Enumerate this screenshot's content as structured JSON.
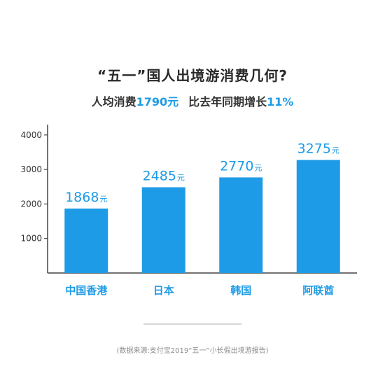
{
  "header": {
    "title": "“五一”国人出境游消费几何?",
    "sub_a": "人均消费",
    "sub_b": "1790元",
    "sub_c": "比去年同期增长",
    "sub_d": "11%"
  },
  "chart_data": {
    "type": "bar",
    "categories": [
      "中国香港",
      "日本",
      "韩国",
      "阿联酋"
    ],
    "values": [
      1868,
      2485,
      2770,
      3275
    ],
    "value_labels": [
      "1868",
      "2485",
      "2770",
      "3275"
    ],
    "unit": "元",
    "yticks": [
      1000,
      2000,
      3000,
      4000
    ],
    "ylim": [
      0,
      4300
    ],
    "grid": false,
    "bar_color": "#1e9be6",
    "label_color": "#1e9be6"
  },
  "footer": {
    "source": "(数据来源:支付宝2019“五一”小长假出境游报告)"
  }
}
